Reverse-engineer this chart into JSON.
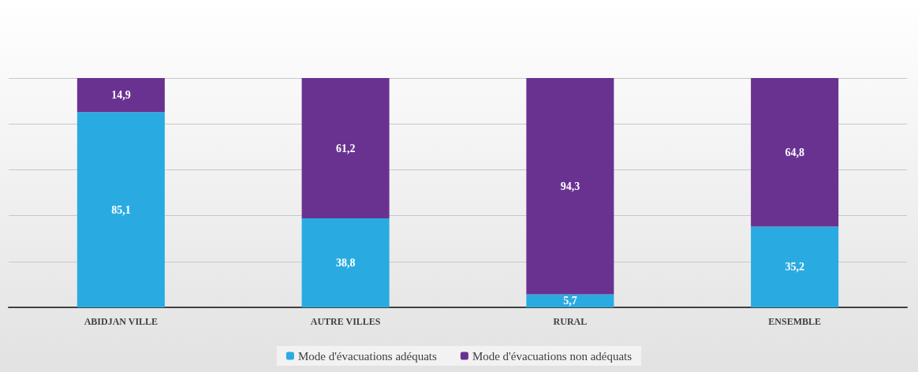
{
  "chart_data": {
    "type": "bar",
    "stacked": true,
    "categories": [
      "ABIDJAN VILLE",
      "AUTRE VILLES",
      "RURAL",
      "ENSEMBLE"
    ],
    "series": [
      {
        "name": "Mode d'évacuations adéquats",
        "color": "#29abe2",
        "values": [
          85.1,
          38.8,
          5.7,
          35.2
        ],
        "value_labels": [
          "85,1",
          "38,8",
          "5,7",
          "35,2"
        ]
      },
      {
        "name": "Mode d'évacuations non adéquats",
        "color": "#6a3290",
        "values": [
          14.9,
          61.2,
          94.3,
          64.8
        ],
        "value_labels": [
          "14,9",
          "61,2",
          "94,3",
          "64,8"
        ]
      }
    ],
    "ylim": [
      0,
      100
    ],
    "yticks": [
      {
        "value": 0,
        "label": null
      },
      {
        "value": 20,
        "label": null
      },
      {
        "value": 40,
        "label": null
      },
      {
        "value": 60,
        "label": null
      },
      {
        "value": 80,
        "label": null
      },
      {
        "value": 100,
        "label": null
      }
    ],
    "grid": "y",
    "legend": "bottom"
  }
}
